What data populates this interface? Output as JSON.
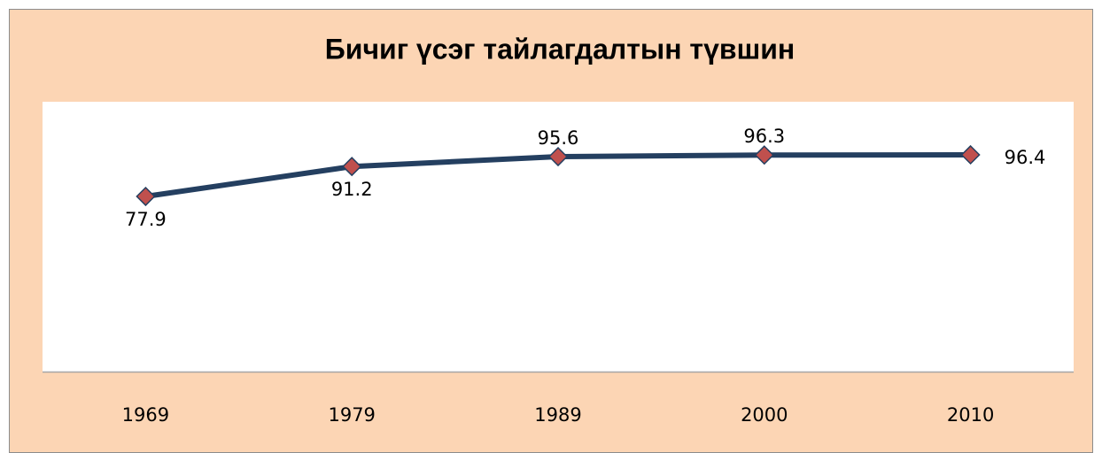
{
  "chart_data": {
    "type": "line",
    "title": "Бичиг үсэг тайлагдалтын түвшин",
    "categories": [
      "1969",
      "1979",
      "1989",
      "2000",
      "2010"
    ],
    "series": [
      {
        "color": "#243f60",
        "marker_color": "#c0504d",
        "values": [
          77.9,
          91.2,
          95.6,
          96.3,
          96.4
        ]
      }
    ],
    "ylim": [
      0,
      120
    ]
  }
}
